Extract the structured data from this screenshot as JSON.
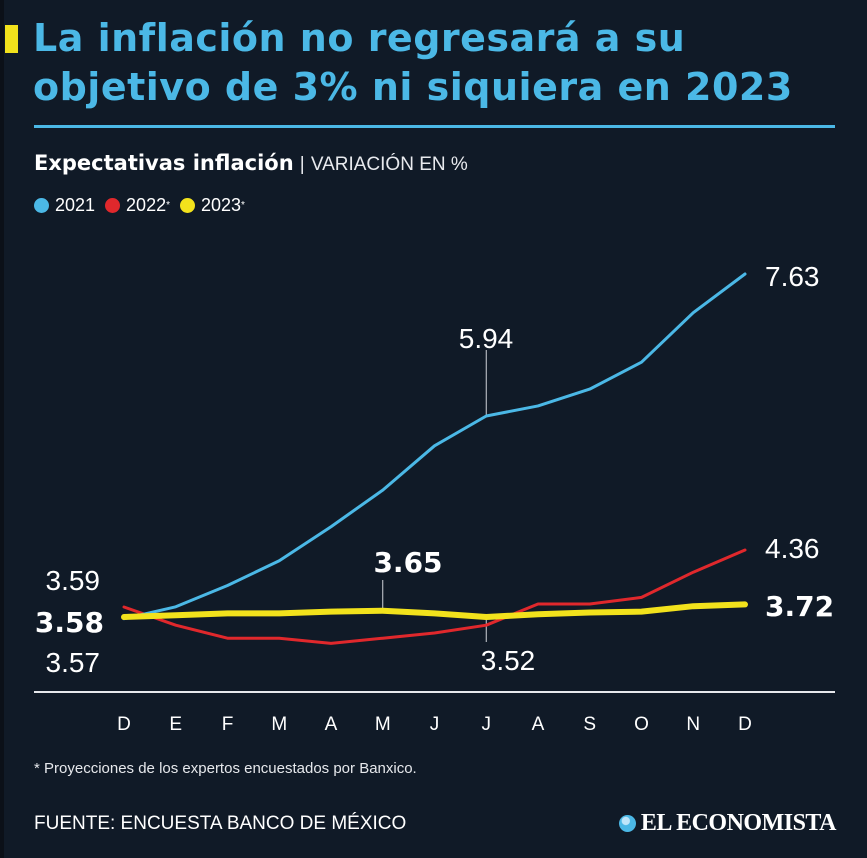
{
  "header": {
    "title": "La inflación no regresará a su objetivo de 3% ni siquiera en 2023",
    "accent_color": "#f2e21c",
    "title_color": "#4bb8e6"
  },
  "subtitle": {
    "main": "Expectativas inflación",
    "separator": "|",
    "unit": "VARIACIÓN EN %"
  },
  "legend": [
    {
      "label": "2021",
      "suffix": "",
      "color": "#4bb8e6"
    },
    {
      "label": "2022",
      "suffix": "*",
      "color": "#e0282c"
    },
    {
      "label": "2023",
      "suffix": "*",
      "color": "#f2e21c"
    }
  ],
  "chart_data": {
    "type": "line",
    "title": "Expectativas inflación",
    "ylabel": "VARIACIÓN EN %",
    "xlabel": "",
    "categories": [
      "D",
      "E",
      "F",
      "M",
      "A",
      "M",
      "J",
      "J",
      "A",
      "S",
      "O",
      "N",
      "D"
    ],
    "grid": false,
    "legend_position": "top-left",
    "series": [
      {
        "name": "2021",
        "color": "#4bb8e6",
        "bold": false,
        "values": [
          3.57,
          3.7,
          3.95,
          4.24,
          4.64,
          5.07,
          5.59,
          5.94,
          6.06,
          6.26,
          6.58,
          7.17,
          7.63
        ]
      },
      {
        "name": "2022*",
        "color": "#e0282c",
        "bold": false,
        "values": [
          3.59,
          3.52,
          3.47,
          3.47,
          3.45,
          3.47,
          3.49,
          3.52,
          3.63,
          3.63,
          3.72,
          4.06,
          4.36
        ]
      },
      {
        "name": "2023*",
        "color": "#f2e21c",
        "bold": true,
        "values": [
          3.58,
          3.6,
          3.62,
          3.62,
          3.64,
          3.65,
          3.62,
          3.58,
          3.61,
          3.63,
          3.64,
          3.7,
          3.72
        ]
      }
    ],
    "annotations": [
      {
        "text": "3.59",
        "series": "2022*",
        "index": 0,
        "bold": false
      },
      {
        "text": "3.58",
        "series": "2023*",
        "index": 0,
        "bold": true
      },
      {
        "text": "3.57",
        "series": "2021",
        "index": 0,
        "bold": false
      },
      {
        "text": "5.94",
        "series": "2021",
        "index": 7,
        "bold": false
      },
      {
        "text": "7.63",
        "series": "2021",
        "index": 12,
        "bold": false
      },
      {
        "text": "3.65",
        "series": "2023*",
        "index": 5,
        "bold": true
      },
      {
        "text": "3.52",
        "series": "2022*",
        "index": 7,
        "bold": false
      },
      {
        "text": "4.36",
        "series": "2022*",
        "index": 12,
        "bold": false
      },
      {
        "text": "3.72",
        "series": "2023*",
        "index": 12,
        "bold": true
      }
    ]
  },
  "footer": {
    "footnote": "* Proyecciones de los expertos encuestados por Banxico.",
    "source": "FUENTE: ENCUESTA BANCO DE MÉXICO",
    "brand": "EL ECONOMISTA"
  }
}
